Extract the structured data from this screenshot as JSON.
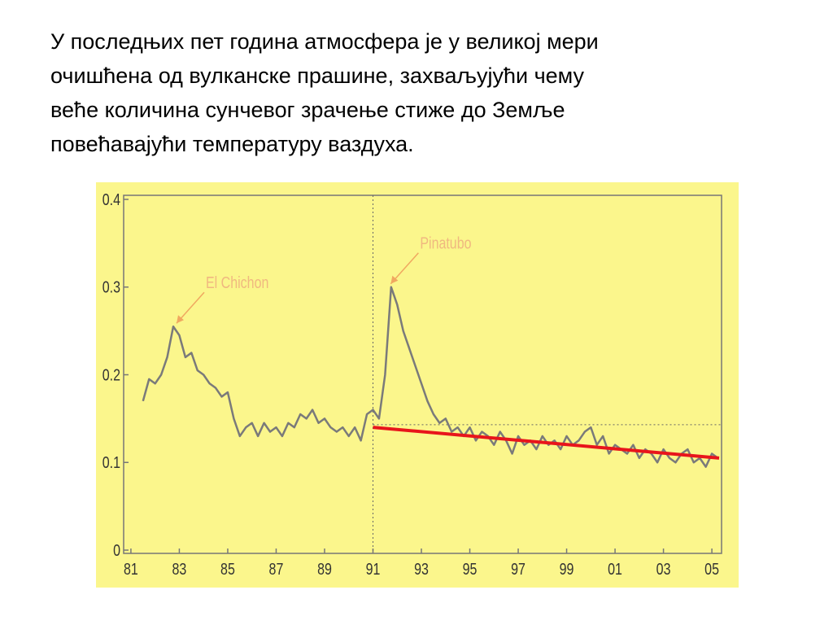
{
  "text_lines": [
    "У последњих пет година атмосфера је у великој мери",
    "очишћена од вулканске прашине, захваљујући чему",
    "веће количина сунчевог зрачење стиже до Земље",
    "повећавајући температуру ваздуха."
  ],
  "chart_data": {
    "type": "line",
    "xlim": [
      1980.7,
      2005.4
    ],
    "ylim": [
      0,
      0.4
    ],
    "xticks": [
      {
        "value": 1981,
        "label": "81"
      },
      {
        "value": 1983,
        "label": "83"
      },
      {
        "value": 1985,
        "label": "85"
      },
      {
        "value": 1987,
        "label": "87"
      },
      {
        "value": 1989,
        "label": "89"
      },
      {
        "value": 1991,
        "label": "91"
      },
      {
        "value": 1993,
        "label": "93"
      },
      {
        "value": 1995,
        "label": "95"
      },
      {
        "value": 1997,
        "label": "97"
      },
      {
        "value": 1999,
        "label": "99"
      },
      {
        "value": 2001,
        "label": "01"
      },
      {
        "value": 2003,
        "label": "03"
      },
      {
        "value": 2005,
        "label": "05"
      }
    ],
    "yticks": [
      0,
      0.1,
      0.2,
      0.3,
      0.4
    ],
    "reference_x": [
      1991
    ],
    "reference_y": [
      0.143
    ],
    "series": [
      {
        "color": "#7a7a7a",
        "x": [
          1981.5,
          1981.75,
          1982,
          1982.25,
          1982.5,
          1982.75,
          1983,
          1983.25,
          1983.5,
          1983.75,
          1984,
          1984.25,
          1984.5,
          1984.75,
          1985,
          1985.25,
          1985.5,
          1985.75,
          1986,
          1986.25,
          1986.5,
          1986.75,
          1987,
          1987.25,
          1987.5,
          1987.75,
          1988,
          1988.25,
          1988.5,
          1988.75,
          1989,
          1989.25,
          1989.5,
          1989.75,
          1990,
          1990.25,
          1990.5,
          1990.75,
          1991,
          1991.25,
          1991.5,
          1991.75,
          1992,
          1992.25,
          1992.5,
          1992.75,
          1993,
          1993.25,
          1993.5,
          1993.75,
          1994,
          1994.25,
          1994.5,
          1994.75,
          1995,
          1995.25,
          1995.5,
          1995.75,
          1996,
          1996.25,
          1996.5,
          1996.75,
          1997,
          1997.25,
          1997.5,
          1997.75,
          1998,
          1998.25,
          1998.5,
          1998.75,
          1999,
          1999.25,
          1999.5,
          1999.75,
          2000,
          2000.25,
          2000.5,
          2000.75,
          2001,
          2001.25,
          2001.5,
          2001.75,
          2002,
          2002.25,
          2002.5,
          2002.75,
          2003,
          2003.25,
          2003.5,
          2003.75,
          2004,
          2004.25,
          2004.5,
          2004.75,
          2005,
          2005.25
        ],
        "values": [
          0.17,
          0.195,
          0.19,
          0.2,
          0.22,
          0.255,
          0.245,
          0.22,
          0.225,
          0.205,
          0.2,
          0.19,
          0.185,
          0.175,
          0.18,
          0.15,
          0.13,
          0.14,
          0.145,
          0.13,
          0.145,
          0.135,
          0.14,
          0.13,
          0.145,
          0.14,
          0.155,
          0.15,
          0.16,
          0.145,
          0.15,
          0.14,
          0.135,
          0.14,
          0.13,
          0.14,
          0.125,
          0.155,
          0.16,
          0.15,
          0.2,
          0.3,
          0.28,
          0.25,
          0.23,
          0.21,
          0.19,
          0.17,
          0.155,
          0.145,
          0.15,
          0.135,
          0.14,
          0.13,
          0.14,
          0.125,
          0.135,
          0.13,
          0.12,
          0.135,
          0.125,
          0.11,
          0.13,
          0.12,
          0.125,
          0.115,
          0.13,
          0.12,
          0.125,
          0.115,
          0.13,
          0.12,
          0.125,
          0.135,
          0.14,
          0.12,
          0.13,
          0.11,
          0.12,
          0.115,
          0.11,
          0.12,
          0.105,
          0.115,
          0.11,
          0.1,
          0.115,
          0.105,
          0.1,
          0.11,
          0.115,
          0.1,
          0.105,
          0.095,
          0.11,
          0.105
        ]
      },
      {
        "color": "#e8151b",
        "x": [
          1991,
          2005.3
        ],
        "values": [
          0.14,
          0.105
        ]
      }
    ],
    "annotations": [
      {
        "text": "El Chichon",
        "x": 1982.75,
        "y": 0.255
      },
      {
        "text": "Pinatubo",
        "x": 1991.6,
        "y": 0.3
      }
    ]
  }
}
